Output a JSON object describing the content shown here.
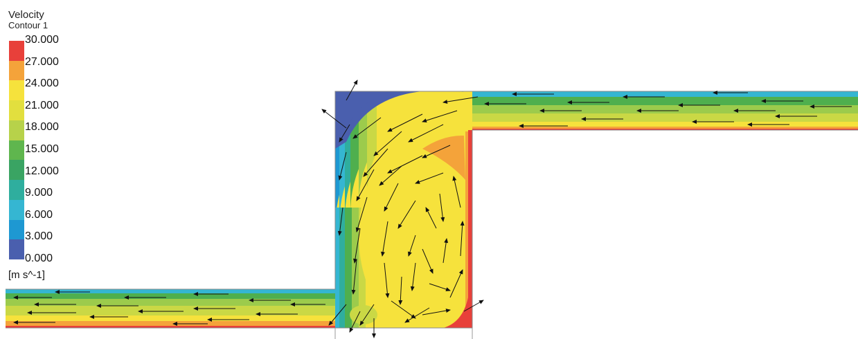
{
  "legend": {
    "title": "Velocity",
    "subtitle": "Contour 1",
    "units": "[m s^-1]",
    "ticks": [
      "30.000",
      "27.000",
      "24.000",
      "21.000",
      "18.000",
      "15.000",
      "12.000",
      "9.000",
      "6.000",
      "3.000",
      "0.000"
    ],
    "colors": [
      "#e8403a",
      "#f4a33a",
      "#f6e23c",
      "#e2df3e",
      "#b7d24a",
      "#5fb64e",
      "#3aa463",
      "#2fae9e",
      "#35b6d2",
      "#1e98d2",
      "#4a5fae"
    ]
  },
  "palette": {
    "outline": "#999999",
    "arrow": "#111111",
    "red": "#e8403a",
    "orange": "#f4a33a",
    "yellow": "#f6e23c",
    "yellowgreen": "#cad845",
    "lightgreen": "#9ccb4c",
    "green": "#4faf4e",
    "teal": "#2fae9e",
    "cyan": "#35b6d2",
    "blue": "#4a5fae"
  }
}
